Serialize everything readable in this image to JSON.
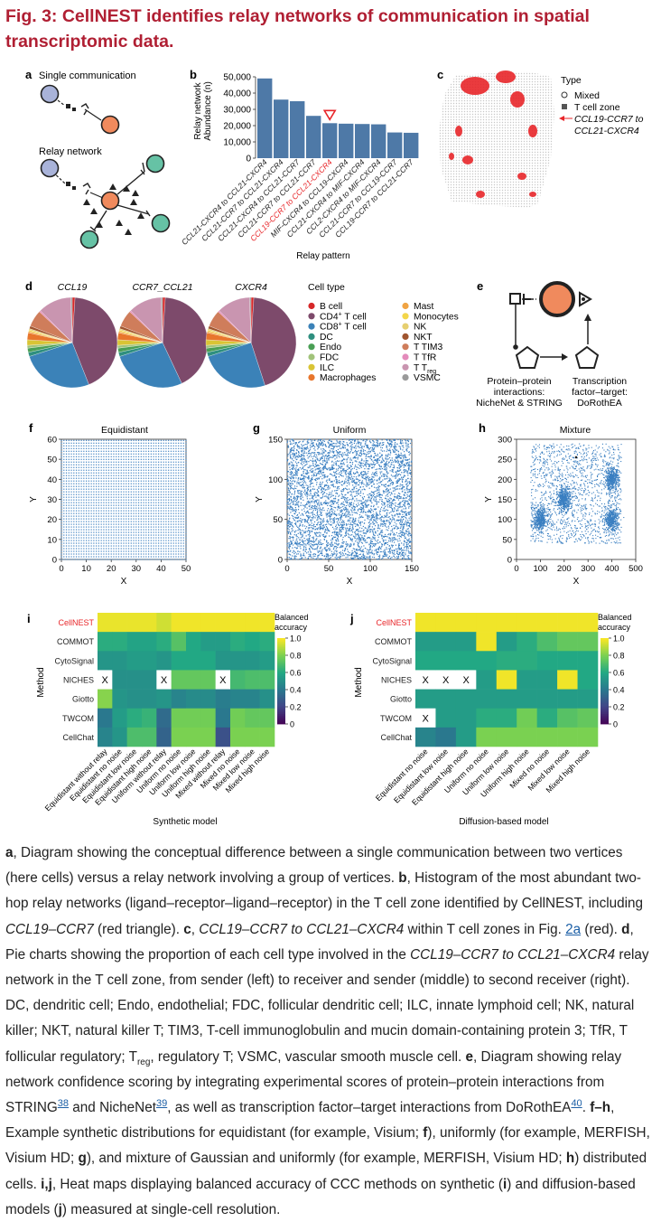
{
  "title": "Fig. 3: CellNEST identifies relay networks of communication in spatial transcriptomic data.",
  "panels": {
    "a": {
      "letter": "a",
      "single_label": "Single communication",
      "relay_label": "Relay network"
    },
    "b": {
      "letter": "b",
      "ylabel_lines": [
        "Relay network",
        "Abundance (n)"
      ],
      "xlabel": "Relay pattern"
    },
    "c": {
      "letter": "c",
      "legend_title": "Type",
      "legend_mixed": "Mixed",
      "legend_tcell": "T cell zone",
      "legend_relay_lines": [
        "CCL19-CCR7 to",
        "CCL21-CXCR4"
      ]
    },
    "d": {
      "letter": "d",
      "pie_titles": [
        "CCL19",
        "CCR7_CCL21",
        "CXCR4"
      ],
      "legend_title": "Cell type"
    },
    "e": {
      "letter": "e",
      "left_lines": [
        "Protein–protein",
        "interactions:",
        "NicheNet & STRING"
      ],
      "right_lines": [
        "Transcription",
        "factor–target:",
        "DoRothEA"
      ]
    },
    "f": {
      "letter": "f",
      "title": "Equidistant"
    },
    "g": {
      "letter": "g",
      "title": "Uniform"
    },
    "h": {
      "letter": "h",
      "title": "Mixture"
    },
    "i": {
      "letter": "i",
      "ylabel": "Method",
      "xlabel": "Synthetic model"
    },
    "j": {
      "letter": "j",
      "ylabel": "Method",
      "xlabel": "Diffusion-based model"
    },
    "colorbar_lines": [
      "Balanced",
      "accuracy"
    ]
  },
  "colors": {
    "bar": "#4e79a7",
    "highlight": "#e8262a",
    "title": "#b01f33",
    "node_blue": "#a9b3d9",
    "node_orange": "#f08a5d",
    "node_green": "#66c2a5",
    "scatter": "#3a7fc1"
  },
  "chart_data": [
    {
      "panel": "b",
      "type": "bar",
      "categories": [
        "CCL21-CXCR4 to CCL21-CXCR4",
        "CCL21-CCR7 to CCL21-CXCR4",
        "CCL21-CXCR4 to CCL21-CCR7",
        "CCL21-CCR7 to CCL21-CCR7",
        "CCL19-CCR7 to CCL21-CXCR4",
        "MIF-CXCR4 to CCL19-CXCR4",
        "CCL21-CXCR4 to MIF-CXCR4",
        "CCL2-CXCR4 to MIF-CXCR4",
        "CCL21-CCR7 to CCL19-CCR7",
        "CCL19-CCR7 to CCL21-CCR7"
      ],
      "values": [
        49000,
        36000,
        35000,
        26000,
        21500,
        21200,
        21000,
        20800,
        15800,
        15600
      ],
      "highlight_index": 4,
      "marker": "triangle",
      "yticks": [
        "0",
        "10,000",
        "20,000",
        "30,000",
        "40,000",
        "50,000"
      ],
      "ylim": [
        0,
        50000
      ]
    },
    {
      "panel": "d",
      "type": "pie",
      "legend": [
        {
          "label": "B cell",
          "color": "#d62728"
        },
        {
          "label": "CD4",
          "sup": "+",
          "suffix": " T cell",
          "color": "#7d4a6b"
        },
        {
          "label": "CD8",
          "sup": "+",
          "suffix": " T cell",
          "color": "#3b82b8"
        },
        {
          "label": "DC",
          "color": "#2f8f7f"
        },
        {
          "label": "Endo",
          "color": "#4a9f55"
        },
        {
          "label": "FDC",
          "color": "#a1c37a"
        },
        {
          "label": "ILC",
          "color": "#d9c435"
        },
        {
          "label": "Macrophages",
          "color": "#e8762c"
        },
        {
          "label": "Mast",
          "color": "#f0a443"
        },
        {
          "label": "Monocytes",
          "color": "#f3d64a"
        },
        {
          "label": "NK",
          "color": "#e6cf70"
        },
        {
          "label": "NKT",
          "color": "#a0552f"
        },
        {
          "label": "T TIM3",
          "color": "#cf7d5b"
        },
        {
          "label": "T TfR",
          "color": "#e48bbb"
        },
        {
          "label": "T T",
          "sub": "reg",
          "color": "#c995b0"
        },
        {
          "label": "VSMC",
          "color": "#9a9a9a"
        }
      ],
      "pies": [
        {
          "name": "CCL19",
          "slices": [
            1,
            43,
            26,
            1.5,
            1.5,
            1,
            2,
            2.5,
            0.5,
            0.5,
            0.5,
            1,
            6,
            0.5,
            12,
            0.5
          ]
        },
        {
          "name": "CCR7_CCL21",
          "slices": [
            1,
            42,
            27,
            1.5,
            1.5,
            1,
            2,
            2.5,
            0.5,
            0.5,
            0.5,
            1,
            6,
            0.5,
            12,
            0.5
          ]
        },
        {
          "name": "CXCR4",
          "slices": [
            1,
            44,
            25,
            1.5,
            1.5,
            1,
            2,
            2.5,
            0.5,
            0.5,
            0.5,
            1,
            6,
            0.5,
            12,
            0.5
          ]
        }
      ]
    },
    {
      "panel": "f",
      "type": "scatter",
      "pattern": "grid",
      "xlim": [
        0,
        50
      ],
      "ylim": [
        0,
        60
      ],
      "xticks": [
        0,
        10,
        20,
        30,
        40,
        50
      ],
      "yticks": [
        0,
        10,
        20,
        30,
        40,
        50,
        60
      ],
      "xlabel": "X",
      "ylabel": "Y"
    },
    {
      "panel": "g",
      "type": "scatter",
      "pattern": "uniform",
      "n": 4500,
      "xlim": [
        0,
        150
      ],
      "ylim": [
        0,
        150
      ],
      "xticks": [
        0,
        50,
        100,
        150
      ],
      "yticks": [
        0,
        50,
        100,
        150
      ],
      "xlabel": "X",
      "ylabel": "Y"
    },
    {
      "panel": "h",
      "type": "scatter",
      "pattern": "mixture",
      "xlim": [
        0,
        500
      ],
      "ylim": [
        0,
        300
      ],
      "xticks": [
        0,
        100,
        200,
        300,
        400,
        500
      ],
      "yticks": [
        0,
        50,
        100,
        150,
        200,
        250,
        300
      ],
      "clusters": [
        [
          100,
          100
        ],
        [
          200,
          150
        ],
        [
          400,
          200
        ],
        [
          400,
          100
        ]
      ],
      "xlabel": "X",
      "ylabel": "Y"
    },
    {
      "panel": "i",
      "type": "heatmap",
      "rows": [
        "CellNEST",
        "COMMOT",
        "CytoSignal",
        "NICHES",
        "Giotto",
        "TWCOM",
        "CellChat"
      ],
      "columns": [
        "Equidistant without relay",
        "Equidistant no noise",
        "Equidistant low noise",
        "Equidistant high noise",
        "Uniform without relay",
        "Uniform no noise",
        "Uniform low noise",
        "Uniform high noise",
        "Mixed without relay",
        "Mixed no noise",
        "Mixed low noise",
        "Mixed high noise"
      ],
      "values": [
        [
          0.97,
          0.97,
          0.97,
          0.97,
          0.93,
          0.98,
          0.98,
          0.98,
          0.98,
          0.98,
          0.98,
          0.98
        ],
        [
          0.62,
          0.62,
          0.58,
          0.58,
          0.62,
          0.72,
          0.6,
          0.55,
          0.55,
          0.62,
          0.6,
          0.62
        ],
        [
          0.52,
          0.52,
          0.55,
          0.55,
          0.52,
          0.6,
          0.6,
          0.6,
          0.52,
          0.52,
          0.52,
          0.55
        ],
        [
          null,
          0.5,
          0.5,
          0.5,
          null,
          0.75,
          0.75,
          0.75,
          null,
          0.68,
          0.7,
          0.7
        ],
        [
          0.82,
          0.52,
          0.5,
          0.5,
          0.52,
          0.45,
          0.48,
          0.48,
          0.42,
          0.45,
          0.45,
          0.5
        ],
        [
          0.4,
          0.55,
          0.62,
          0.65,
          0.35,
          0.78,
          0.78,
          0.78,
          0.4,
          0.78,
          0.75,
          0.75
        ],
        [
          0.45,
          0.52,
          0.7,
          0.7,
          0.32,
          0.8,
          0.8,
          0.8,
          0.25,
          0.8,
          0.8,
          0.8
        ]
      ],
      "vmin": 0,
      "vmax": 1,
      "colorbar_ticks": [
        "0",
        "0.2",
        "0.4",
        "0.6",
        "0.8",
        "1.0"
      ],
      "missing_mark": "X"
    },
    {
      "panel": "j",
      "type": "heatmap",
      "rows": [
        "CellNEST",
        "COMMOT",
        "CytoSignal",
        "NICHES",
        "Giotto",
        "TWCOM",
        "CellChat"
      ],
      "columns": [
        "Equidistant no noise",
        "Equidistant low noise",
        "Equidistant high noise",
        "Uniform no noise",
        "Uniform low noise",
        "Uniform high noise",
        "Mixed no noise",
        "Mixed low noise",
        "Mixed high noise"
      ],
      "values": [
        [
          0.98,
          0.98,
          0.98,
          0.98,
          0.98,
          0.98,
          0.98,
          0.98,
          0.98
        ],
        [
          0.55,
          0.55,
          0.55,
          0.98,
          0.55,
          0.62,
          0.7,
          0.75,
          0.75
        ],
        [
          0.6,
          0.6,
          0.6,
          0.6,
          0.62,
          0.62,
          0.6,
          0.6,
          0.6
        ],
        [
          null,
          null,
          null,
          0.55,
          0.98,
          0.55,
          0.55,
          0.98,
          0.6
        ],
        [
          0.55,
          0.55,
          0.55,
          0.55,
          0.55,
          0.55,
          0.55,
          0.55,
          0.55
        ],
        [
          null,
          0.55,
          0.55,
          0.62,
          0.62,
          0.78,
          0.62,
          0.72,
          0.75
        ],
        [
          0.45,
          0.4,
          0.55,
          0.8,
          0.8,
          0.8,
          0.8,
          0.8,
          0.8
        ]
      ],
      "vmin": 0,
      "vmax": 1,
      "colorbar_ticks": [
        "0",
        "0.2",
        "0.4",
        "0.6",
        "0.8",
        "1.0"
      ],
      "missing_mark": "X"
    }
  ],
  "caption": {
    "a_letter": "a",
    "a_text": ", Diagram showing the conceptual difference between a single communication between two vertices (here cells) versus a relay network involving a group of vertices. ",
    "b_letter": "b",
    "b_text1": ", Histogram of the most abundant two-hop relay networks (ligand–receptor–ligand–receptor) in the T cell zone identified by CellNEST, including ",
    "b_gene": "CCL19–CCR7",
    "b_text2": " (red triangle). ",
    "c_letter": "c",
    "c_text0": ", ",
    "c_gene": "CCL19–CCR7 to CCL21–CXCR4",
    "c_text1": " within T cell zones in Fig. ",
    "c_fig": "2a",
    "c_text2": " (red). ",
    "d_letter": "d",
    "d_text1": ", Pie charts showing the proportion of each cell type involved in the ",
    "d_gene": "CCL19–CCR7 to CCL21–CXCR4",
    "d_text2": " relay network in the T cell zone, from sender (left) to receiver and sender (middle) to second receiver (right). DC, dendritic cell; Endo, endothelial; FDC, follicular dendritic cell; ILC, innate lymphoid cell; NK, natural killer; NKT, natural killer T; TIM3, T-cell immunoglobulin and mucin domain-containing protein 3; TfR, T follicular regulatory; T",
    "d_sub": "reg",
    "d_text3": ", regulatory T; VSMC, vascular smooth muscle cell. ",
    "e_letter": "e",
    "e_text1": ", Diagram showing relay network confidence scoring by integrating experimental scores of protein–protein interactions from STRING",
    "e_ref1": "38",
    "e_text2": " and NicheNet",
    "e_ref2": "39",
    "e_text3": ", as well as transcription factor–target interactions from DoRothEA",
    "e_ref3": "40",
    "e_text4": ". ",
    "fh_letters": "f–h",
    "fh_text1": ", Example synthetic distributions for equidistant (for example, Visium; ",
    "f_letter": "f",
    "fh_text2": "), uniformly (for example, MERFISH, Visium HD; ",
    "g_letter": "g",
    "fh_text3": "), and mixture of Gaussian and uniformly (for example, MERFISH, Visium HD; ",
    "h_letter": "h",
    "fh_text4": ") distributed cells. ",
    "ij_letters": "i,j",
    "ij_text1": ", Heat maps displaying balanced accuracy of CCC methods on synthetic (",
    "i_letter": "i",
    "ij_text2": ") and diffusion-based models (",
    "j_letter": "j",
    "ij_text3": ") measured at single-cell resolution."
  }
}
